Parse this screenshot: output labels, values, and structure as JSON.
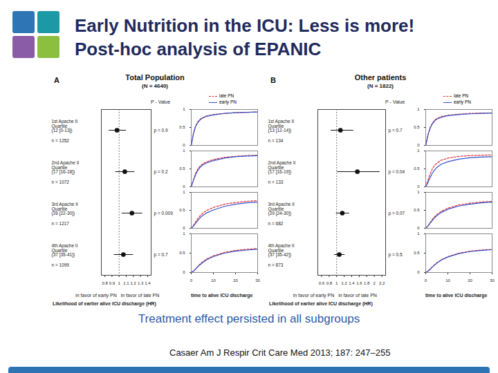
{
  "slide": {
    "title_lines": [
      "Early Nutrition in the ICU: Less is more!",
      "Post-hoc analysis of EPANIC"
    ],
    "conclusion": "Treatment effect persisted in all subgroups",
    "citation": "Casaer Am J Respir Crit Care Med 2013; 187: 247–255"
  },
  "chart_data": [
    {
      "type": "forest",
      "panel_label": "A",
      "title": "Total Population",
      "subtitle": "(N = 4640)",
      "p_header": "P - Value",
      "categories": [
        "1st Apache II\nQuartile\n(12 [0-13])",
        "2nd Apache II\nQuartile\n(17 [16-18])",
        "3rd Apache II\nQuartile\n(26 [22-30])",
        "4th Apache II\nQuartile\n(37 [35-41])"
      ],
      "n_labels": [
        "n = 1252",
        "n = 1072",
        "n = 1217",
        "n = 1099"
      ],
      "values": [
        0.97,
        1.08,
        1.18,
        1.06
      ],
      "ci_low": [
        0.86,
        0.95,
        1.04,
        0.93
      ],
      "ci_high": [
        1.1,
        1.22,
        1.33,
        1.2
      ],
      "p_labels": [
        "p = 0.9",
        "p = 0.2",
        "p = 0.009",
        "p = 0.7"
      ],
      "reference": 1,
      "xlim": [
        0.75,
        1.45
      ],
      "xticks": [
        0.8,
        0.9,
        1,
        1.1,
        1.2,
        1.3,
        1.4
      ],
      "xlabel": "Likelihood of earlier alive ICU discharge (HR)",
      "left_note": "in favor of early PN",
      "right_note": "in favor of late PN",
      "km": {
        "type": "line",
        "xlabel": "time to alive ICU discharge",
        "xlim": [
          0,
          30
        ],
        "xticks": [
          0,
          10,
          20,
          30
        ],
        "ylim": [
          0,
          1
        ],
        "yticks": [
          0,
          0.5,
          1
        ],
        "x": [
          0,
          1,
          2,
          3,
          4,
          5,
          7,
          10,
          15,
          20,
          25,
          30
        ],
        "series": [
          {
            "name": "late PN",
            "color": "#e0303a",
            "line_style": "dashed"
          },
          {
            "name": "early PN",
            "color": "#3050c8",
            "line_style": "solid"
          }
        ],
        "curves": [
          [
            [
              0,
              0.35,
              0.55,
              0.66,
              0.73,
              0.77,
              0.82,
              0.86,
              0.89,
              0.91,
              0.92,
              0.93
            ],
            [
              0,
              0.33,
              0.53,
              0.64,
              0.71,
              0.76,
              0.81,
              0.85,
              0.89,
              0.91,
              0.92,
              0.93
            ]
          ],
          [
            [
              0,
              0.2,
              0.38,
              0.5,
              0.58,
              0.63,
              0.7,
              0.76,
              0.82,
              0.85,
              0.87,
              0.88
            ],
            [
              0,
              0.18,
              0.34,
              0.46,
              0.54,
              0.6,
              0.67,
              0.73,
              0.8,
              0.84,
              0.86,
              0.87
            ]
          ],
          [
            [
              0,
              0.08,
              0.18,
              0.27,
              0.35,
              0.41,
              0.5,
              0.58,
              0.67,
              0.72,
              0.75,
              0.77
            ],
            [
              0,
              0.06,
              0.14,
              0.22,
              0.29,
              0.35,
              0.43,
              0.51,
              0.61,
              0.67,
              0.71,
              0.73
            ]
          ],
          [
            [
              0,
              0.04,
              0.1,
              0.16,
              0.22,
              0.27,
              0.35,
              0.43,
              0.52,
              0.57,
              0.6,
              0.62
            ],
            [
              0,
              0.03,
              0.09,
              0.15,
              0.2,
              0.25,
              0.33,
              0.41,
              0.5,
              0.55,
              0.58,
              0.6
            ]
          ]
        ]
      }
    },
    {
      "type": "forest",
      "panel_label": "B",
      "title": "Other patients",
      "subtitle": "(N = 1822)",
      "p_header": "P - Value",
      "categories": [
        "1st Apache II\nQuartile\n(13 [12-14])",
        "2nd Apache II\nQuartile\n(17 [16-19])",
        "3rd Apache II\nQuartile\n(29 [24-30])",
        "4th Apache II\nQuartile\n(37 [35-42])"
      ],
      "n_labels": [
        "n = 134",
        "n = 133",
        "n = 682",
        "n = 873"
      ],
      "values": [
        1.1,
        1.55,
        1.15,
        1.07
      ],
      "ci_low": [
        0.85,
        1.02,
        0.99,
        0.94
      ],
      "ci_high": [
        1.45,
        2.15,
        1.34,
        1.22
      ],
      "p_labels": [
        "p = 0.7",
        "p = 0.04",
        "p = 0.07",
        "p = 0.5"
      ],
      "reference": 1,
      "xlim": [
        0.5,
        2.3
      ],
      "xticks": [
        0.6,
        0.8,
        1,
        1.2,
        1.4,
        1.6,
        1.8,
        2,
        2.2
      ],
      "xlabel": "Likelihood of earlier alive ICU discharge (HR)",
      "left_note": "in favor of early PN",
      "right_note": "in favor of late PN",
      "km": {
        "type": "line",
        "xlabel": "time to alive ICU discharge",
        "xlim": [
          0,
          30
        ],
        "xticks": [
          0,
          10,
          20,
          30
        ],
        "ylim": [
          0,
          1
        ],
        "yticks": [
          0,
          0.5,
          1
        ],
        "x": [
          0,
          1,
          2,
          3,
          4,
          5,
          7,
          10,
          15,
          20,
          25,
          30
        ],
        "series": [
          {
            "name": "late PN",
            "color": "#e0303a",
            "line_style": "dashed"
          },
          {
            "name": "early PN",
            "color": "#3050c8",
            "line_style": "solid"
          }
        ],
        "curves": [
          [
            [
              0,
              0.3,
              0.5,
              0.62,
              0.7,
              0.75,
              0.8,
              0.84,
              0.87,
              0.89,
              0.9,
              0.9
            ],
            [
              0,
              0.28,
              0.48,
              0.6,
              0.68,
              0.73,
              0.78,
              0.83,
              0.86,
              0.88,
              0.89,
              0.9
            ]
          ],
          [
            [
              0,
              0.18,
              0.36,
              0.5,
              0.6,
              0.66,
              0.74,
              0.8,
              0.85,
              0.87,
              0.88,
              0.89
            ],
            [
              0,
              0.12,
              0.26,
              0.38,
              0.47,
              0.54,
              0.63,
              0.7,
              0.77,
              0.81,
              0.83,
              0.84
            ]
          ],
          [
            [
              0,
              0.07,
              0.16,
              0.25,
              0.32,
              0.38,
              0.47,
              0.56,
              0.65,
              0.7,
              0.73,
              0.75
            ],
            [
              0,
              0.06,
              0.14,
              0.22,
              0.29,
              0.35,
              0.44,
              0.53,
              0.62,
              0.67,
              0.71,
              0.73
            ]
          ],
          [
            [
              0,
              0.04,
              0.09,
              0.15,
              0.2,
              0.25,
              0.33,
              0.41,
              0.5,
              0.55,
              0.58,
              0.6
            ],
            [
              0,
              0.03,
              0.08,
              0.14,
              0.19,
              0.24,
              0.32,
              0.4,
              0.49,
              0.54,
              0.57,
              0.59
            ]
          ]
        ]
      }
    }
  ]
}
